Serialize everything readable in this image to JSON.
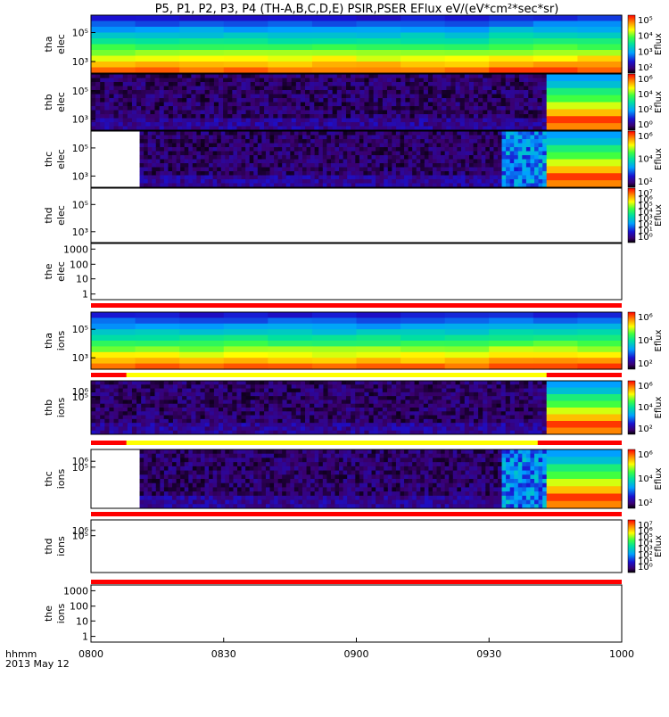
{
  "title": "P5, P1, P2, P3, P4 (TH-A,B,C,D,E) PSIR,PSER EFlux eV/(eV*cm²*sec*sr)",
  "x_axis": {
    "ticks": [
      "0800",
      "0830",
      "0900",
      "0930",
      "1000"
    ],
    "unit_label": "hhmm",
    "date_label": "2013 May 12"
  },
  "colorbar_label": "Eflux",
  "chart_data": {
    "type": "heatmap",
    "title": "P5, P1, P2, P3, P4 (TH-A,B,C,D,E) PSIR,PSER EFlux eV/(eV*cm²*sec*sr)",
    "x_range": [
      "08:00",
      "10:00"
    ],
    "panels": [
      {
        "probe": "tha",
        "species": "elec",
        "y_ticks": [
          "10⁵",
          "10³"
        ],
        "colorbar_ticks": [
          "10⁵",
          "10⁴",
          "10³",
          "10²"
        ],
        "data": "full coverage, smooth energy gradient"
      },
      {
        "probe": "thb",
        "species": "elec",
        "y_ticks": [
          "10⁵",
          "10³"
        ],
        "colorbar_ticks": [
          "10⁶",
          "10⁴",
          "10²",
          "10⁰"
        ],
        "data": "low-flux noise 08:00-09:43, high flux 09:43-10:00"
      },
      {
        "probe": "thc",
        "species": "elec",
        "y_ticks": [
          "10⁵",
          "10³"
        ],
        "colorbar_ticks": [
          "10⁶",
          "10⁴",
          "10²"
        ],
        "data": "no data 08:00-08:11, noise, enhancement 09:32-09:43, high flux after 09:43"
      },
      {
        "probe": "thd",
        "species": "elec",
        "y_ticks": [
          "10⁵",
          "10³"
        ],
        "colorbar_ticks": [
          "10⁷",
          "10⁶",
          "10⁵",
          "10⁴",
          "10³",
          "10²",
          "10¹",
          "10⁰"
        ],
        "data": "no data"
      },
      {
        "probe": "the",
        "species": "elec",
        "y_ticks": [
          "1000",
          "100",
          "10",
          "1"
        ],
        "data": "no data"
      },
      {
        "probe": "tha",
        "species": "ions",
        "y_ticks": [
          "10⁵",
          "10³"
        ],
        "colorbar_ticks": [
          "10⁶",
          "10⁴",
          "10²"
        ],
        "data": "full coverage"
      },
      {
        "probe": "thb",
        "species": "ions",
        "y_ticks": [
          "10⁶",
          "10⁵"
        ],
        "colorbar_ticks": [
          "10⁶",
          "10⁴",
          "10²"
        ],
        "data": "noise then high flux after 09:43"
      },
      {
        "probe": "thc",
        "species": "ions",
        "y_ticks": [
          "10⁶",
          "10⁵"
        ],
        "colorbar_ticks": [
          "10⁶",
          "10⁴",
          "10²"
        ],
        "data": "no data 08:00-08:11, noise, enhancement 09:32-09:43, high flux after 09:43"
      },
      {
        "probe": "thd",
        "species": "ions",
        "y_ticks": [
          "10⁶",
          "10⁵"
        ],
        "colorbar_ticks": [
          "10⁷",
          "10⁶",
          "10⁵",
          "10⁴",
          "10³",
          "10²",
          "10¹",
          "10⁰"
        ],
        "data": "no data"
      },
      {
        "probe": "the",
        "species": "ions",
        "y_ticks": [
          "1000",
          "100",
          "10",
          "1"
        ],
        "data": "no data"
      }
    ]
  }
}
